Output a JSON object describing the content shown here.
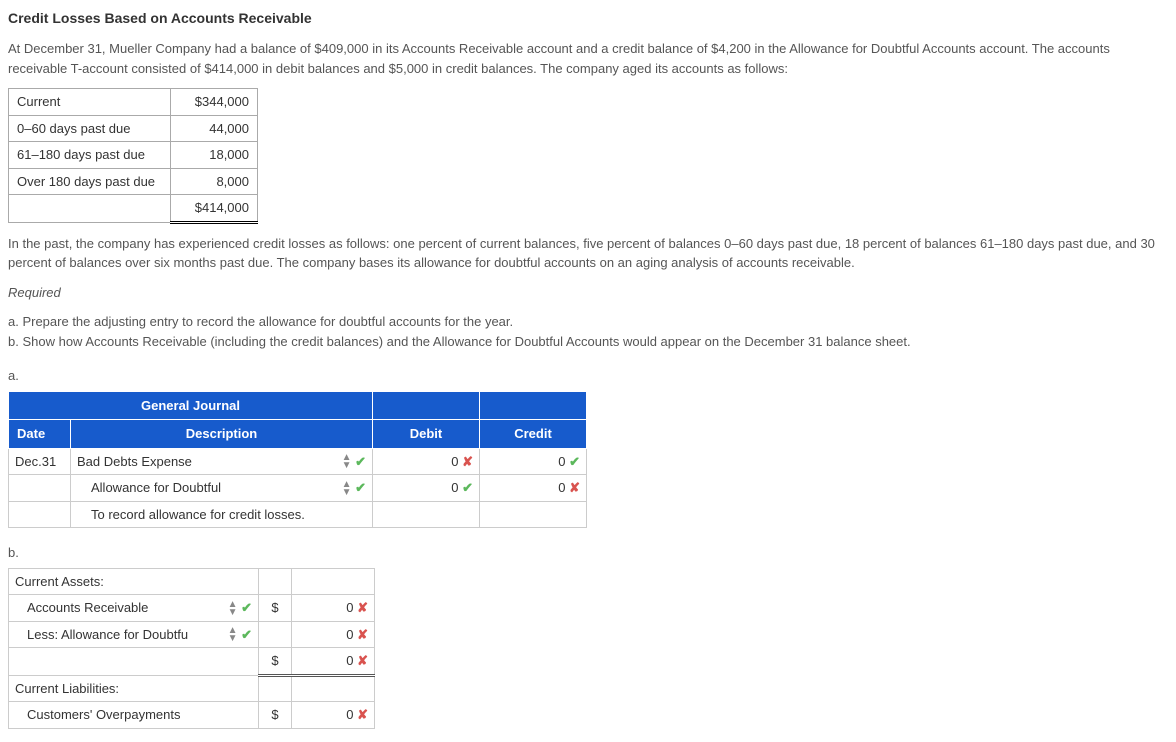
{
  "title": "Credit Losses Based on Accounts Receivable",
  "intro": "At December 31, Mueller Company had a balance of $409,000 in its Accounts Receivable account and a credit balance of $4,200 in the Allowance for Doubtful Accounts account. The accounts receivable T-account consisted of $414,000 in debit balances and $5,000 in credit balances. The company aged its accounts as follows:",
  "aging": {
    "rows": [
      {
        "label": "Current",
        "value": "$344,000"
      },
      {
        "label": "0–60 days past due",
        "value": "44,000"
      },
      {
        "label": "61–180 days past due",
        "value": "18,000"
      },
      {
        "label": "Over 180 days past due",
        "value": "8,000"
      }
    ],
    "total": "$414,000"
  },
  "para2": "In the past, the company has experienced credit losses as follows: one percent of current balances, five percent of balances 0–60 days past due, 18 percent of balances 61–180 days past due, and 30 percent of balances over six months past due. The company bases its allowance for doubtful accounts on an aging analysis of accounts receivable.",
  "required_label": "Required",
  "req_a": "a. Prepare the adjusting entry to record the allowance for doubtful accounts for the year.",
  "req_b": "b. Show how Accounts Receivable (including the credit balances) and the Allowance for Doubtful Accounts would appear on the December 31 balance sheet.",
  "label_a": "a.",
  "label_b": "b.",
  "journal": {
    "title": "General Journal",
    "col_date": "Date",
    "col_desc": "Description",
    "col_debit": "Debit",
    "col_credit": "Credit",
    "date": "Dec.31",
    "row1_desc": "Bad Debts Expense",
    "row1_debit": "0",
    "row1_credit": "0",
    "row2_desc": "Allowance for Doubtful",
    "row2_debit": "0",
    "row2_credit": "0",
    "row3_desc": "To record allowance for credit losses."
  },
  "balance": {
    "cur_assets": "Current Assets:",
    "ar": "Accounts Receivable",
    "less": "Less: Allowance for Doubtfu",
    "cur_liab": "Current Liabilities:",
    "cust_over": "Customers' Overpayments",
    "v1": "0",
    "v2": "0",
    "v3": "0",
    "v4": "0",
    "dollar": "$"
  },
  "icons": {
    "sort": "⇕",
    "check": "✔",
    "cross": "✘"
  },
  "colors": {
    "header_bg": "#175bcc",
    "check": "#5cb85c",
    "cross": "#d9534f"
  }
}
